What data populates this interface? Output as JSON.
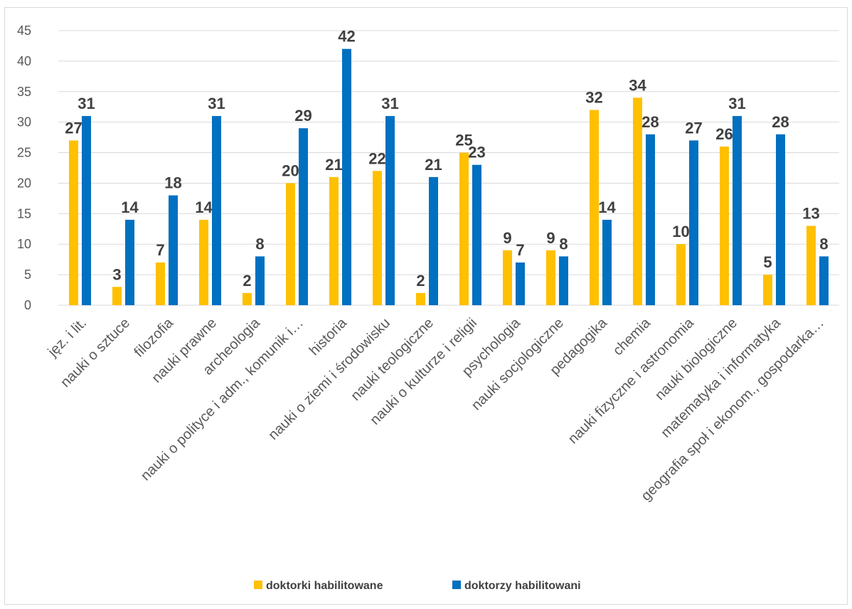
{
  "colors": {
    "series1": "#FFC000",
    "series2": "#0070C0",
    "grid": "#d9d9d9",
    "text": "#595959",
    "label": "#404040"
  },
  "chart_data": {
    "type": "bar",
    "title": "",
    "xlabel": "",
    "ylabel": "",
    "ylim": [
      0,
      45
    ],
    "yticks": [
      0,
      5,
      10,
      15,
      20,
      25,
      30,
      35,
      40,
      45
    ],
    "grid": true,
    "legend_position": "bottom",
    "categories": [
      "jęz. i lit.",
      "nauki o sztuce",
      "filozofia",
      "nauki prawne",
      "archeologia",
      "nauki o polityce i adm., komunik i…",
      "historia",
      "nauki o ziemi i środowisku",
      "nauki teologiczne",
      "nauki o kulturze i religii",
      "psychologia",
      "nauki socjologiczne",
      "pedagogika",
      "chemia",
      "nauki fizyczne i astronomia",
      "nauki biologiczne",
      "matematyka i informatyka",
      "geografia społ i ekonom., gospodarka…"
    ],
    "series": [
      {
        "name": "doktorki habilitowane",
        "values": [
          27,
          3,
          7,
          14,
          2,
          20,
          21,
          22,
          2,
          25,
          9,
          9,
          32,
          34,
          10,
          26,
          5,
          13
        ]
      },
      {
        "name": "doktorzy habilitowani",
        "values": [
          31,
          14,
          18,
          31,
          8,
          29,
          42,
          31,
          21,
          23,
          7,
          8,
          14,
          28,
          27,
          31,
          28,
          8
        ]
      }
    ]
  }
}
